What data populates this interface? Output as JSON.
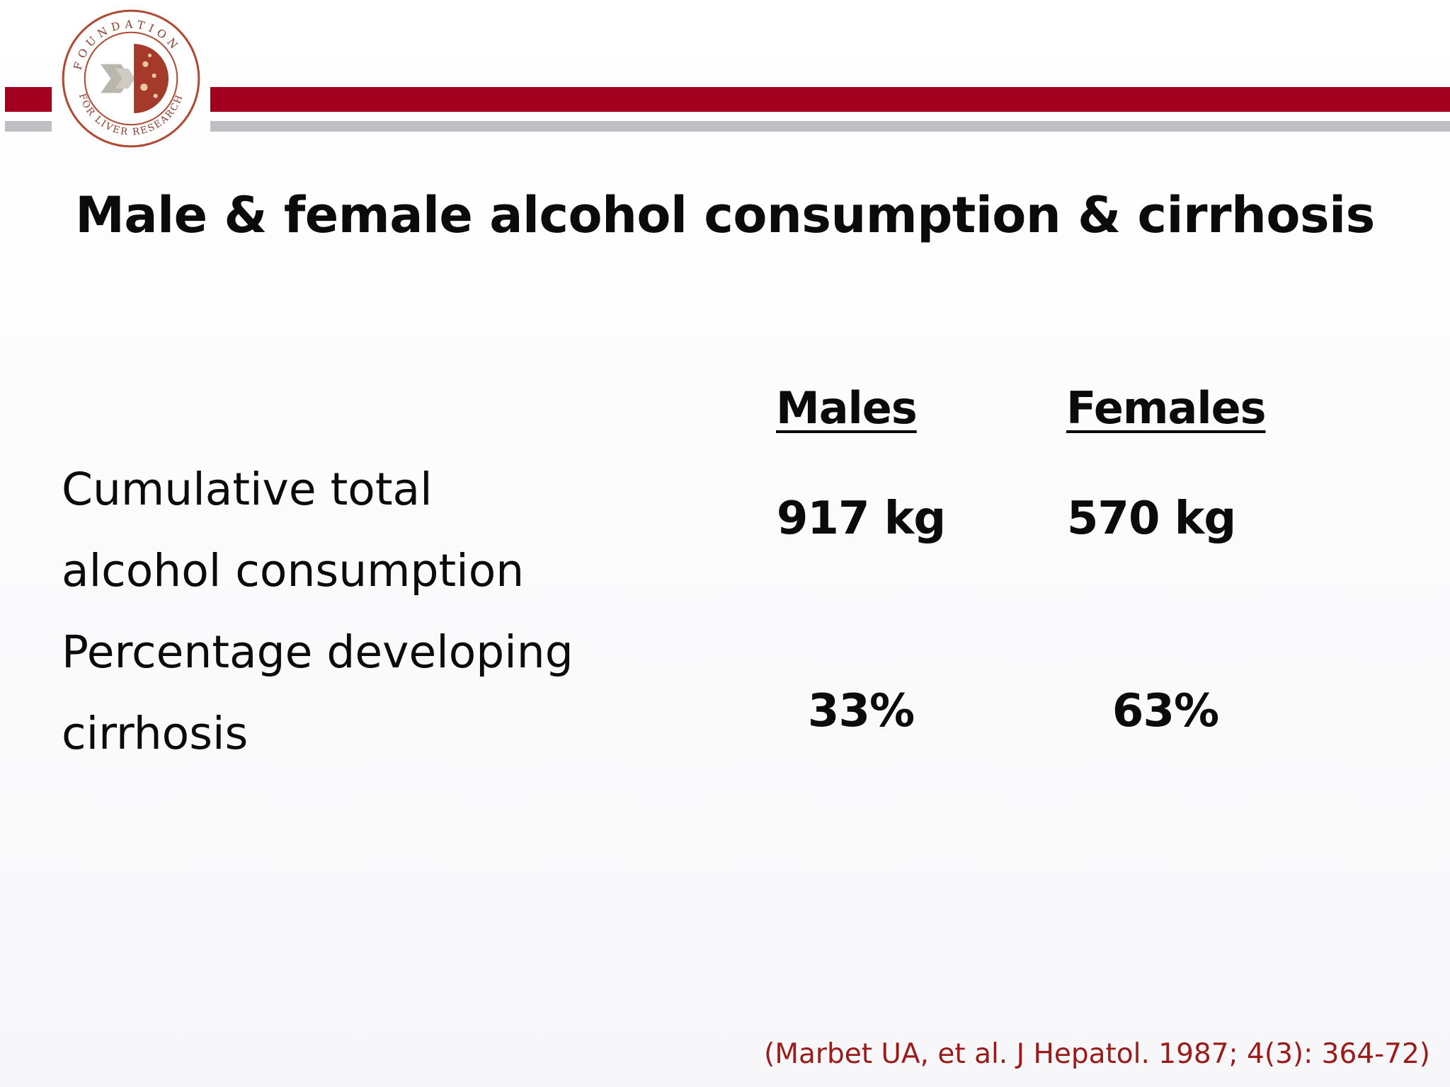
{
  "logo": {
    "text": "FOUNDATION FOR LIVER RESEARCH",
    "colors": {
      "ring": "#b04a35",
      "accent": "#a63a2a",
      "arrow": "#b9b6ad"
    }
  },
  "colors": {
    "stripe_red": "#a3001f",
    "stripe_grey": "#bfbfc3",
    "citation": "#9b1b1b"
  },
  "slide": {
    "title": "Male & female alcohol consumption & cirrhosis"
  },
  "table": {
    "columns": [
      "Males",
      "Females"
    ],
    "rows": [
      {
        "label": "Cumulative total\nalcohol consumption",
        "values": [
          "917 kg",
          "570 kg"
        ]
      },
      {
        "label": "Percentage developing\ncirrhosis",
        "values": [
          "33%",
          "63%"
        ]
      }
    ]
  },
  "citation": "(Marbet UA, et al. J Hepatol. 1987; 4(3): 364-72)"
}
